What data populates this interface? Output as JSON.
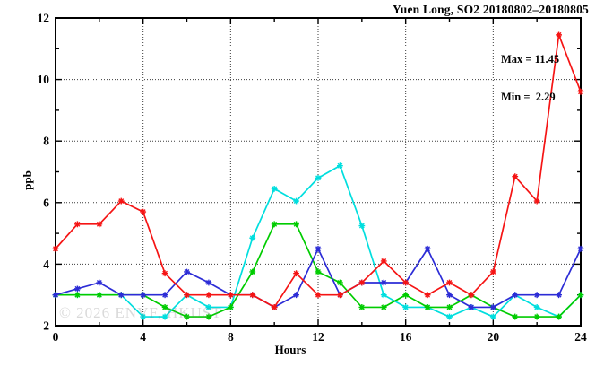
{
  "title": "Yuen Long, SO2 20180802–20180805",
  "annotation": {
    "max_label": "Max = 11.45",
    "min_label": "Min =  2.29"
  },
  "watermark": "© 2026 ENVF, HKUST",
  "chart_data": {
    "type": "line",
    "title": "Yuen Long, SO2 20180802–20180805",
    "xlabel": "Hours",
    "ylabel": "ppb",
    "xlim": [
      0,
      24
    ],
    "ylim": [
      2,
      12
    ],
    "grid": "dotted",
    "legend": "none",
    "max_value": 11.45,
    "min_value": 2.29,
    "xticks_major": [
      0,
      4,
      8,
      12,
      16,
      20,
      24
    ],
    "xticks_minor": [
      2,
      6,
      10,
      14,
      18,
      22
    ],
    "yticks_major": [
      2,
      4,
      6,
      8,
      10,
      12
    ],
    "yticks_minor": [
      3,
      5,
      7,
      9,
      11
    ],
    "grid_x": [
      4,
      8,
      12,
      16,
      20
    ],
    "grid_y": [
      4,
      6,
      8,
      10
    ],
    "x": [
      0,
      1,
      2,
      3,
      4,
      5,
      6,
      7,
      8,
      9,
      10,
      11,
      12,
      13,
      14,
      15,
      16,
      17,
      18,
      19,
      20,
      21,
      22,
      23,
      24
    ],
    "series": [
      {
        "name": "cyan-line",
        "color": "#00dede",
        "values": [
          3.0,
          3.0,
          3.0,
          3.0,
          2.29,
          2.29,
          3.0,
          2.6,
          2.6,
          4.85,
          6.45,
          6.05,
          6.8,
          7.2,
          5.25,
          3.0,
          2.6,
          2.6,
          2.29,
          2.6,
          2.29,
          3.0,
          2.6,
          2.29,
          3.0
        ]
      },
      {
        "name": "green-line",
        "color": "#00cc00",
        "values": [
          3.0,
          3.0,
          3.0,
          3.0,
          3.0,
          2.6,
          2.29,
          2.29,
          2.6,
          3.75,
          5.3,
          5.3,
          3.75,
          3.4,
          2.6,
          2.6,
          3.0,
          2.6,
          2.6,
          3.0,
          2.6,
          2.29,
          2.29,
          2.29,
          3.0
        ]
      },
      {
        "name": "blue-line",
        "color": "#2c2cd6",
        "values": [
          3.0,
          3.2,
          3.4,
          3.0,
          3.0,
          3.0,
          3.75,
          3.4,
          3.0,
          3.0,
          2.6,
          3.0,
          4.5,
          3.0,
          3.4,
          3.4,
          3.4,
          4.5,
          3.0,
          2.6,
          2.6,
          3.0,
          3.0,
          3.0,
          4.5
        ]
      },
      {
        "name": "red-line",
        "color": "#f51414",
        "values": [
          4.5,
          5.3,
          5.3,
          6.05,
          5.7,
          3.7,
          3.0,
          3.0,
          3.0,
          3.0,
          2.6,
          3.7,
          3.0,
          3.0,
          3.4,
          4.1,
          3.4,
          3.0,
          3.4,
          3.0,
          3.75,
          6.85,
          6.05,
          11.45,
          9.6
        ]
      }
    ]
  }
}
